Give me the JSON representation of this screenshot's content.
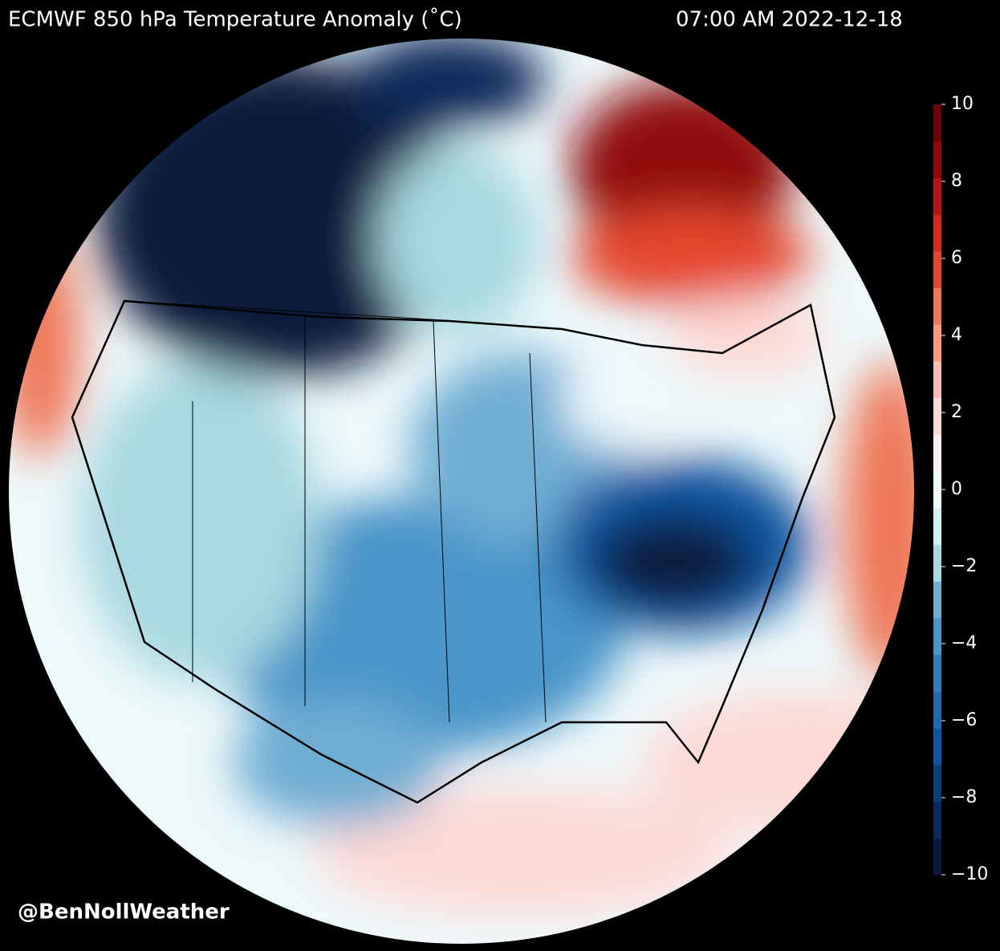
{
  "header": {
    "title": "ECMWF 850 hPa Temperature Anomaly (˚C)",
    "timestamp": "07:00 AM 2022-12-18"
  },
  "colorbar": {
    "range": [
      -10,
      10
    ],
    "ticks": [
      {
        "value": -10,
        "label": "−10"
      },
      {
        "value": -8,
        "label": "−8"
      },
      {
        "value": -6,
        "label": "−6"
      },
      {
        "value": -4,
        "label": "−4"
      },
      {
        "value": -2,
        "label": "−2"
      },
      0,
      2,
      4,
      6,
      8,
      10
    ],
    "colors": [
      "#0a1a3e",
      "#0d2a5c",
      "#0c3e7a",
      "#0f55a0",
      "#1d6cb1",
      "#2f7fbf",
      "#4a95c9",
      "#6fadd3",
      "#a8d8e0",
      "#d4eef2",
      "#eef9fb",
      "#fff0f0",
      "#fdd9d5",
      "#fbbcb0",
      "#f7997f",
      "#ef7656",
      "#e5472e",
      "#d42a20",
      "#b51419",
      "#920a0e",
      "#6b0006"
    ]
  },
  "credit": "@BenNollWeather"
}
